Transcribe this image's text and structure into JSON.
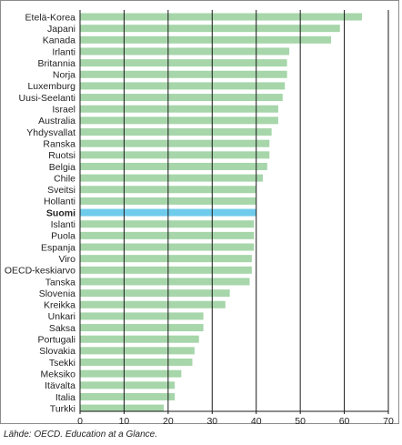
{
  "chart_data": {
    "type": "bar",
    "orientation": "horizontal",
    "categories": [
      "Etelä-Korea",
      "Japani",
      "Kanada",
      "Irlanti",
      "Britannia",
      "Norja",
      "Luxemburg",
      "Uusi-Seelanti",
      "Israel",
      "Australia",
      "Yhdysvallat",
      "Ranska",
      "Ruotsi",
      "Belgia",
      "Chile",
      "Sveitsi",
      "Hollanti",
      "Suomi",
      "Islanti",
      "Puola",
      "Espanja",
      "Viro",
      "OECD-keskiarvo",
      "Tanska",
      "Slovenia",
      "Kreikka",
      "Unkari",
      "Saksa",
      "Portugali",
      "Slovakia",
      "Tsekki",
      "Meksiko",
      "Itävalta",
      "Italia",
      "Turkki"
    ],
    "values": [
      64,
      59,
      57,
      47.5,
      47,
      47,
      46.5,
      46,
      45,
      45,
      43.5,
      43,
      43,
      42.5,
      41.5,
      40,
      40,
      40,
      39.5,
      39.5,
      39.5,
      39,
      39,
      38.5,
      34,
      33,
      28,
      28,
      27,
      26,
      25.5,
      23,
      21.5,
      21.5,
      19
    ],
    "highlight": "Suomi",
    "bar_color": "#a6d6aa",
    "highlight_color": "#6fcbec",
    "gridline_color": "#1a1a1a",
    "xlim": [
      0,
      70
    ],
    "xticks": [
      0,
      10,
      20,
      30,
      40,
      50,
      60,
      70
    ],
    "grid": true,
    "title": "",
    "xlabel": "",
    "ylabel": ""
  },
  "source_text": "Lähde: OECD. Education at a Glance."
}
